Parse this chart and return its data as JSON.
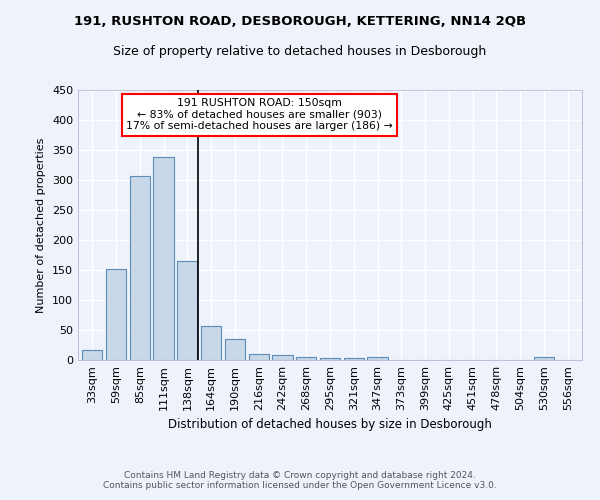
{
  "title1": "191, RUSHTON ROAD, DESBOROUGH, KETTERING, NN14 2QB",
  "title2": "Size of property relative to detached houses in Desborough",
  "xlabel": "Distribution of detached houses by size in Desborough",
  "ylabel": "Number of detached properties",
  "bin_labels": [
    "33sqm",
    "59sqm",
    "85sqm",
    "111sqm",
    "138sqm",
    "164sqm",
    "190sqm",
    "216sqm",
    "242sqm",
    "268sqm",
    "295sqm",
    "321sqm",
    "347sqm",
    "373sqm",
    "399sqm",
    "425sqm",
    "451sqm",
    "478sqm",
    "504sqm",
    "530sqm",
    "556sqm"
  ],
  "bar_values": [
    16,
    152,
    306,
    338,
    165,
    57,
    35,
    10,
    8,
    5,
    4,
    4,
    5,
    0,
    0,
    0,
    0,
    0,
    0,
    5,
    0
  ],
  "bar_color": "#c8d8e8",
  "bar_edgecolor": "#5b8db8",
  "annotation_box_line1": "191 RUSHTON ROAD: 150sqm",
  "annotation_box_line2": "← 83% of detached houses are smaller (903)",
  "annotation_box_line3": "17% of semi-detached houses are larger (186) →",
  "annotation_box_color": "white",
  "annotation_box_edgecolor": "red",
  "vline_color": "black",
  "footer_text": "Contains HM Land Registry data © Crown copyright and database right 2024.\nContains public sector information licensed under the Open Government Licence v3.0.",
  "background_color": "#eef2fb",
  "grid_color": "white",
  "ylim": [
    0,
    450
  ],
  "yticks": [
    0,
    50,
    100,
    150,
    200,
    250,
    300,
    350,
    400,
    450
  ]
}
